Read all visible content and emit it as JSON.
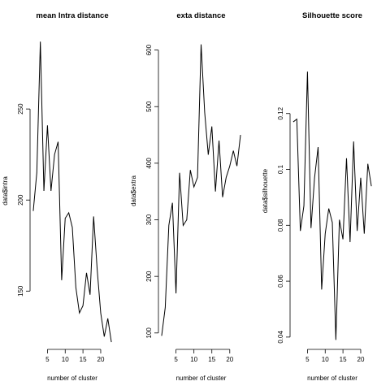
{
  "chart_data": [
    {
      "type": "line",
      "title": "mean Intra distance",
      "xlabel": "number of cluster",
      "ylabel": "data$intra",
      "x": [
        1,
        2,
        3,
        4,
        5,
        6,
        7,
        8,
        9,
        10,
        11,
        12,
        13,
        14,
        15,
        16,
        17,
        18,
        19,
        20,
        21,
        22,
        23
      ],
      "values": [
        194,
        215,
        287,
        205,
        241,
        205,
        225,
        232,
        156,
        190,
        193,
        185,
        152,
        138,
        142,
        160,
        148,
        191,
        162,
        138,
        125,
        135,
        122
      ],
      "xlim": [
        0.1,
        23.9
      ],
      "ylim": [
        118,
        292
      ],
      "xticks": [
        5,
        10,
        15,
        20
      ],
      "yticks": [
        150,
        200,
        250
      ],
      "color": "#000000"
    },
    {
      "type": "line",
      "title": "exta distance",
      "xlabel": "number of cluster",
      "ylabel": "data$extra",
      "x": [
        1,
        2,
        3,
        4,
        5,
        6,
        7,
        8,
        9,
        10,
        11,
        12,
        13,
        14,
        15,
        16,
        17,
        18,
        19,
        20,
        21,
        22,
        23
      ],
      "values": [
        95,
        145,
        290,
        330,
        170,
        383,
        290,
        300,
        388,
        358,
        375,
        610,
        490,
        415,
        465,
        350,
        440,
        340,
        375,
        395,
        422,
        395,
        450
      ],
      "xlim": [
        0.1,
        23.9
      ],
      "ylim": [
        71,
        631
      ],
      "xticks": [
        5,
        10,
        15,
        20
      ],
      "yticks": [
        100,
        200,
        300,
        400,
        500,
        600
      ],
      "color": "#000000"
    },
    {
      "type": "line",
      "title": "Silhouette score",
      "xlabel": "number of cluster",
      "ylabel": "data$silhouette",
      "x": [
        1,
        2,
        3,
        4,
        5,
        6,
        7,
        8,
        9,
        10,
        11,
        12,
        13,
        14,
        15,
        16,
        17,
        18,
        19,
        20,
        21,
        22,
        23
      ],
      "values": [
        0.117,
        0.118,
        0.078,
        0.087,
        0.135,
        0.079,
        0.097,
        0.108,
        0.057,
        0.077,
        0.086,
        0.081,
        0.039,
        0.082,
        0.075,
        0.104,
        0.074,
        0.11,
        0.078,
        0.097,
        0.077,
        0.102,
        0.094
      ],
      "xlim": [
        0.1,
        23.9
      ],
      "ylim": [
        0.0356,
        0.149
      ],
      "xticks": [
        5,
        10,
        15,
        20
      ],
      "yticks": [
        0.04,
        0.06,
        0.08,
        0.1,
        0.12
      ],
      "color": "#000000"
    }
  ]
}
